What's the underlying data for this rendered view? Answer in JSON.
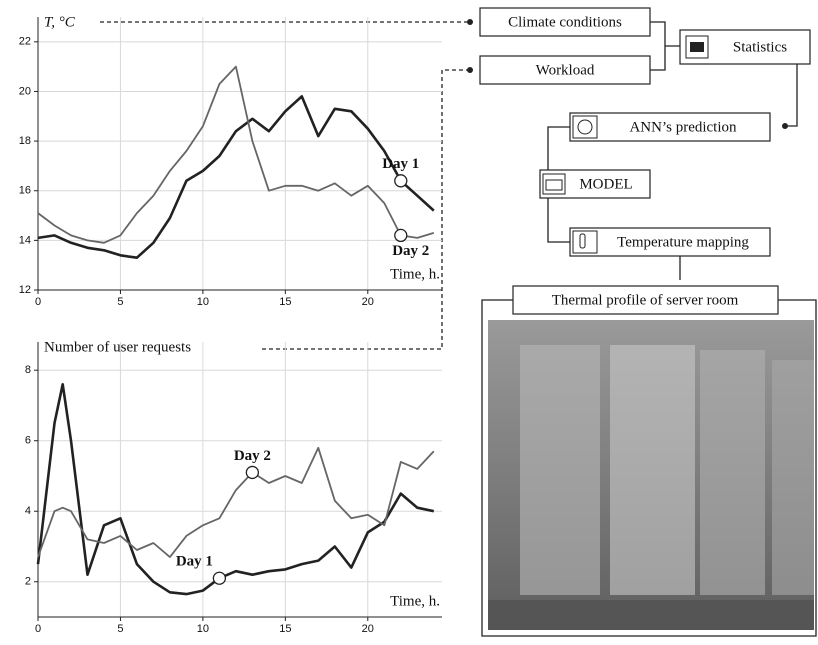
{
  "chart_data": [
    {
      "type": "line",
      "ylabel": "T, °C",
      "xlabel": "Time, h.",
      "x": [
        0,
        1,
        2,
        3,
        4,
        5,
        6,
        7,
        8,
        9,
        10,
        11,
        12,
        13,
        14,
        15,
        16,
        17,
        18,
        19,
        20,
        21,
        22,
        23,
        24
      ],
      "series": [
        {
          "name": "Day 1",
          "color": "#222222",
          "width": 2.6,
          "values": [
            14.1,
            14.2,
            13.9,
            13.7,
            13.6,
            13.4,
            13.3,
            13.9,
            14.9,
            16.4,
            16.8,
            17.4,
            18.4,
            18.9,
            18.4,
            19.2,
            19.8,
            18.2,
            19.3,
            19.2,
            18.5,
            17.6,
            16.4,
            15.8,
            15.2
          ]
        },
        {
          "name": "Day 2",
          "color": "#666666",
          "width": 1.8,
          "values": [
            15.1,
            14.6,
            14.2,
            14.0,
            13.9,
            14.2,
            15.1,
            15.8,
            16.8,
            17.6,
            18.6,
            20.3,
            21.0,
            18.0,
            16.0,
            16.2,
            16.2,
            16.0,
            16.3,
            15.8,
            16.2,
            15.5,
            14.2,
            14.1,
            14.3
          ]
        }
      ],
      "xlim": [
        0,
        24.5
      ],
      "ylim": [
        12,
        23
      ],
      "xticks": [
        0,
        5,
        10,
        15,
        20
      ],
      "yticks": [
        12,
        14,
        16,
        18,
        20,
        22
      ],
      "grid": true
    },
    {
      "type": "line",
      "ylabel": "Number of user requests",
      "xlabel": "Time, h.",
      "x": [
        0,
        1,
        1.5,
        2,
        3,
        4,
        5,
        6,
        7,
        8,
        9,
        10,
        11,
        12,
        13,
        14,
        15,
        16,
        17,
        18,
        19,
        20,
        21,
        22,
        23,
        24
      ],
      "series": [
        {
          "name": "Day 1",
          "color": "#222222",
          "width": 2.6,
          "values": [
            2.5,
            6.5,
            7.6,
            6.0,
            2.2,
            3.6,
            3.8,
            2.5,
            2.0,
            1.7,
            1.65,
            1.75,
            2.1,
            2.3,
            2.2,
            2.3,
            2.35,
            2.5,
            2.6,
            3.0,
            2.4,
            3.4,
            3.7,
            4.5,
            4.1,
            4.0
          ]
        },
        {
          "name": "Day 2",
          "color": "#666666",
          "width": 1.8,
          "values": [
            2.7,
            4.0,
            4.1,
            4.0,
            3.2,
            3.1,
            3.3,
            2.9,
            3.1,
            2.7,
            3.3,
            3.6,
            3.8,
            4.6,
            5.1,
            4.8,
            5.0,
            4.8,
            5.8,
            4.3,
            3.8,
            3.9,
            3.6,
            5.4,
            5.2,
            5.7
          ]
        }
      ],
      "xlim": [
        0,
        24.5
      ],
      "ylim": [
        1,
        8.8
      ],
      "xticks": [
        0,
        5,
        10,
        15,
        20
      ],
      "yticks": [
        2,
        4,
        6,
        8
      ],
      "grid": true
    }
  ],
  "diagram": {
    "nodes": [
      "Climate conditions",
      "Workload",
      "Statistics",
      "ANN’s prediction",
      "MODEL",
      "Temperature mapping",
      "Thermal profile of server room"
    ]
  }
}
